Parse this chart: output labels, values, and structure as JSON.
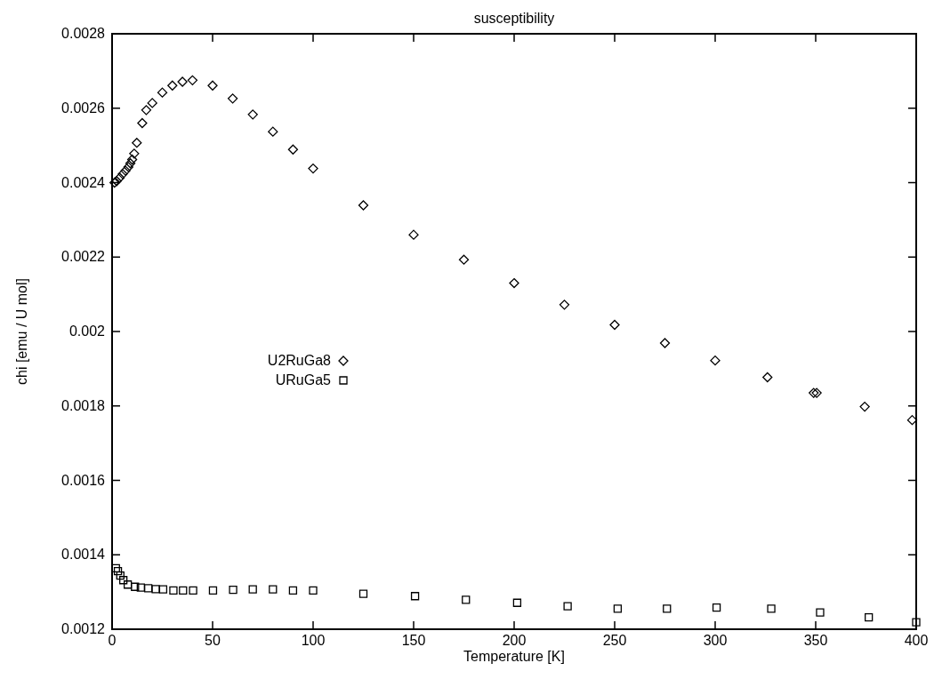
{
  "chart_data": {
    "type": "scatter",
    "title": "susceptibility",
    "xlabel": "Temperature [K]",
    "ylabel": "chi [emu / U mol]",
    "xlim": [
      0,
      400
    ],
    "xticks": [
      0,
      50,
      100,
      150,
      200,
      250,
      300,
      350,
      400
    ],
    "ylim": [
      0.0012,
      0.0028
    ],
    "yticks": [
      0.0012,
      0.0014,
      0.0016,
      0.0018,
      0.002,
      0.0022,
      0.0024,
      0.0026,
      0.0028
    ],
    "grid": false,
    "legend": "left",
    "series": [
      {
        "name": "U2RuGa8",
        "color": "#000000",
        "marker": "diamond",
        "x": [
          1.2,
          2.3,
          3.8,
          5.3,
          6.7,
          8.1,
          9.1,
          10,
          11,
          12.3,
          15,
          17,
          20,
          25,
          30,
          35,
          40,
          50,
          60,
          70,
          80,
          90,
          100,
          125,
          150,
          175,
          200,
          225,
          250,
          275,
          300,
          326,
          349,
          350.5,
          374.4,
          398
        ],
        "values": [
          0.0024,
          0.002404,
          0.002413,
          0.002423,
          0.002432,
          0.002442,
          0.002452,
          0.002462,
          0.002478,
          0.002507,
          0.00256,
          0.002595,
          0.002614,
          0.002642,
          0.002661,
          0.002671,
          0.002675,
          0.002661,
          0.002626,
          0.002583,
          0.002537,
          0.002489,
          0.002438,
          0.002339,
          0.00226,
          0.002193,
          0.00213,
          0.002072,
          0.002018,
          0.001969,
          0.001922,
          0.001877,
          0.001835,
          0.001835,
          0.001798,
          0.001762
        ]
      },
      {
        "name": "URuGa5",
        "color": "#000000",
        "marker": "square",
        "x": [
          1.9,
          2.9,
          4.1,
          5.6,
          7.8,
          11.4,
          14.3,
          18,
          21.7,
          25.4,
          30.5,
          35.3,
          40.3,
          50.2,
          60.2,
          70,
          80,
          90,
          100,
          125,
          150.7,
          176,
          201.5,
          226.6,
          251.5,
          276,
          300.7,
          327.9,
          352.2,
          376.4,
          400
        ],
        "values": [
          0.001364,
          0.001356,
          0.001344,
          0.001332,
          0.00132,
          0.001314,
          0.001312,
          0.00131,
          0.001308,
          0.001307,
          0.001304,
          0.001304,
          0.001304,
          0.001304,
          0.001306,
          0.001307,
          0.001307,
          0.001304,
          0.001304,
          0.001295,
          0.001289,
          0.001279,
          0.001271,
          0.001262,
          0.001255,
          0.001255,
          0.001258,
          0.001255,
          0.001245,
          0.001232,
          0.001219
        ]
      }
    ]
  }
}
